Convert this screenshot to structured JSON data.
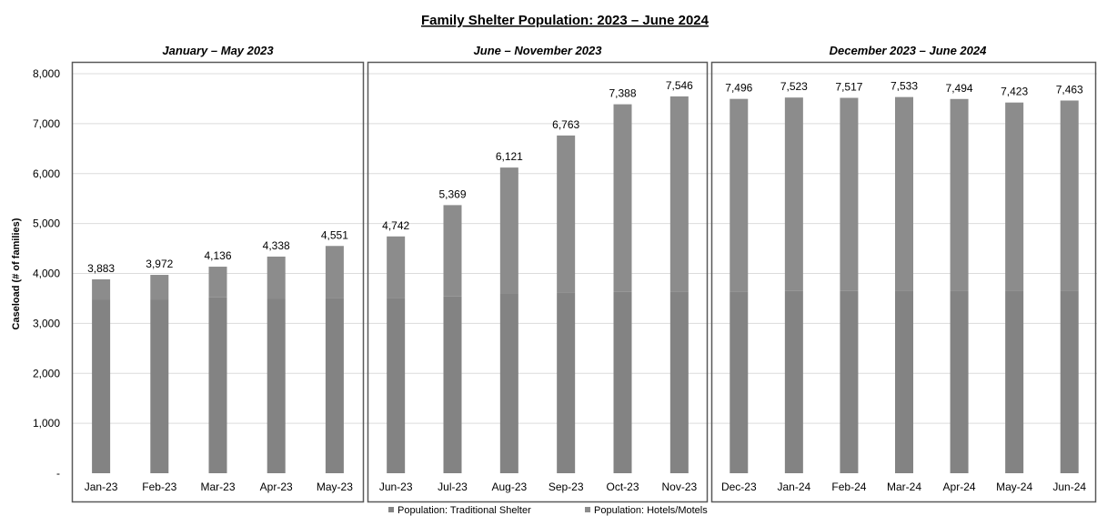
{
  "chart_data": {
    "type": "bar",
    "title": "Family Shelter Population: 2023 – June 2024",
    "ylabel": "Caseload (# of families)",
    "xlabel": "",
    "ylim": [
      0,
      8000
    ],
    "y_ticks": [
      "-",
      "1,000",
      "2,000",
      "3,000",
      "4,000",
      "5,000",
      "6,000",
      "7,000",
      "8,000"
    ],
    "grid": true,
    "legend_position": "bottom",
    "colors": {
      "traditional_shelter": "#838383",
      "hotels_motels": "#8c8c8c"
    },
    "periods": [
      {
        "label": "January – May 2023",
        "start": 0,
        "end": 4
      },
      {
        "label": "June – November 2023",
        "start": 5,
        "end": 10
      },
      {
        "label": "December 2023 – June 2024",
        "start": 11,
        "end": 17
      }
    ],
    "categories": [
      "Jan-23",
      "Feb-23",
      "Mar-23",
      "Apr-23",
      "May-23",
      "Jun-23",
      "Jul-23",
      "Aug-23",
      "Sep-23",
      "Oct-23",
      "Nov-23",
      "Dec-23",
      "Jan-24",
      "Feb-24",
      "Mar-24",
      "Apr-24",
      "May-24",
      "Jun-24"
    ],
    "totals": [
      3883,
      3972,
      4136,
      4338,
      4551,
      4742,
      5369,
      6121,
      6763,
      7388,
      7546,
      7496,
      7523,
      7517,
      7533,
      7494,
      7423,
      7463
    ],
    "total_labels": [
      "3,883",
      "3,972",
      "4,136",
      "4,338",
      "4,551",
      "4,742",
      "5,369",
      "6,121",
      "6,763",
      "7,388",
      "7,546",
      "7,496",
      "7,523",
      "7,517",
      "7,533",
      "7,494",
      "7,423",
      "7,463"
    ],
    "series": [
      {
        "name": "Population: Traditional Shelter",
        "values": [
          3480,
          3480,
          3520,
          3490,
          3500,
          3510,
          3540,
          3590,
          3620,
          3630,
          3640,
          3640,
          3650,
          3650,
          3660,
          3660,
          3660,
          3660
        ]
      },
      {
        "name": "Population: Hotels/Motels",
        "values": [
          403,
          492,
          616,
          848,
          1051,
          1232,
          1829,
          2531,
          3143,
          3758,
          3906,
          3856,
          3873,
          3867,
          3873,
          3834,
          3763,
          3803
        ]
      }
    ]
  }
}
